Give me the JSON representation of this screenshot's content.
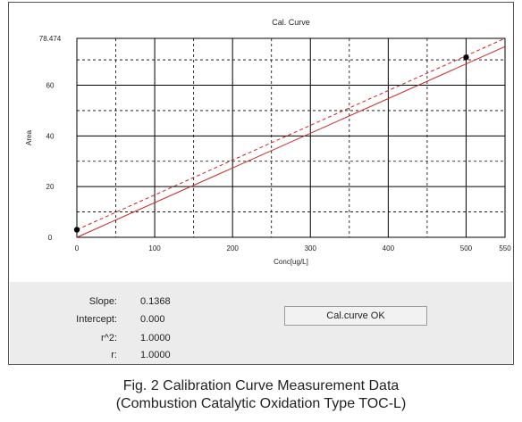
{
  "chart_data": {
    "type": "line",
    "title": "Cal. Curve",
    "xlabel": "Conc[ug/L]",
    "ylabel": "Area",
    "xlim": [
      0,
      550
    ],
    "ylim": [
      0,
      78.474
    ],
    "x_ticks": [
      "0",
      "100",
      "200",
      "300",
      "400",
      "500",
      "550"
    ],
    "y_ticks": [
      "0",
      "20",
      "40",
      "60",
      "78.474"
    ],
    "grid": true,
    "points": [
      {
        "x": 0,
        "y": 3
      },
      {
        "x": 500,
        "y": 71
      }
    ],
    "series": [
      {
        "style": "solid",
        "color": "#cc2222",
        "values": [
          {
            "x": 0,
            "y": 0
          },
          {
            "x": 550,
            "y": 75.24
          }
        ]
      },
      {
        "style": "dashed",
        "color": "#cc2222",
        "values": [
          {
            "x": 0,
            "y": 3
          },
          {
            "x": 550,
            "y": 78.474
          }
        ]
      }
    ]
  },
  "results": [
    {
      "label": "Slope:",
      "value": "0.1368"
    },
    {
      "label": "Intercept:",
      "value": "0.000"
    },
    {
      "label": "r^2:",
      "value": "1.0000"
    },
    {
      "label": "r:",
      "value": "1.0000"
    }
  ],
  "status": "Cal.curve OK",
  "caption": {
    "line1": "Fig. 2  Calibration Curve Measurement Data",
    "line2": "(Combustion Catalytic Oxidation Type TOC-L)"
  }
}
